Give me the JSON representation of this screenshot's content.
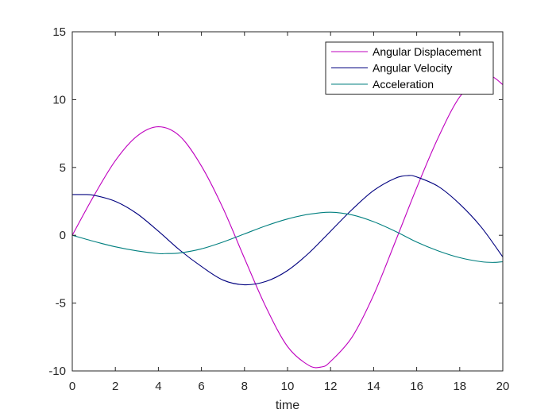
{
  "chart_data": {
    "type": "line",
    "title": "",
    "xlabel": "time",
    "ylabel": "",
    "xlim": [
      0,
      20
    ],
    "ylim": [
      -10,
      15
    ],
    "xticks": [
      0,
      2,
      4,
      6,
      8,
      10,
      12,
      14,
      16,
      18,
      20
    ],
    "yticks": [
      -10,
      -5,
      0,
      5,
      10,
      15
    ],
    "grid": false,
    "legend_position": "top-right",
    "series": [
      {
        "name": "Angular Displacement",
        "color": "#bf00bf",
        "x": [
          0,
          1,
          2,
          3,
          4,
          5,
          6,
          7,
          8,
          9,
          10,
          11,
          11.6,
          12,
          13,
          14,
          15,
          16,
          17,
          18,
          19,
          19.5,
          20
        ],
        "y": [
          0,
          2.9,
          5.5,
          7.3,
          8.0,
          7.3,
          5.1,
          2.0,
          -1.7,
          -5.3,
          -8.2,
          -9.6,
          -9.7,
          -9.3,
          -7.5,
          -4.4,
          -0.5,
          3.5,
          7.2,
          10.2,
          11.6,
          11.7,
          11.1
        ]
      },
      {
        "name": "Angular Velocity",
        "color": "#00007f",
        "x": [
          0,
          0.5,
          1,
          2,
          3,
          4,
          5,
          6,
          7,
          8,
          9,
          10,
          11,
          12,
          13,
          14,
          15,
          15.6,
          16,
          17,
          18,
          19,
          20
        ],
        "y": [
          3.0,
          3.0,
          2.95,
          2.5,
          1.6,
          0.3,
          -1.1,
          -2.3,
          -3.3,
          -3.65,
          -3.4,
          -2.6,
          -1.3,
          0.3,
          1.9,
          3.3,
          4.2,
          4.4,
          4.3,
          3.6,
          2.3,
          0.6,
          -1.6
        ]
      },
      {
        "name": "Acceleration",
        "color": "#007f7f",
        "x": [
          0,
          1,
          2,
          3,
          4,
          4.3,
          5,
          6,
          7,
          8,
          9,
          10,
          11,
          12,
          13,
          14,
          15,
          16,
          17,
          18,
          19,
          19.6,
          20
        ],
        "y": [
          0,
          -0.45,
          -0.85,
          -1.15,
          -1.35,
          -1.35,
          -1.3,
          -1.0,
          -0.5,
          0.1,
          0.7,
          1.2,
          1.55,
          1.7,
          1.5,
          1.0,
          0.3,
          -0.5,
          -1.15,
          -1.65,
          -1.95,
          -2.0,
          -1.95
        ]
      }
    ]
  }
}
